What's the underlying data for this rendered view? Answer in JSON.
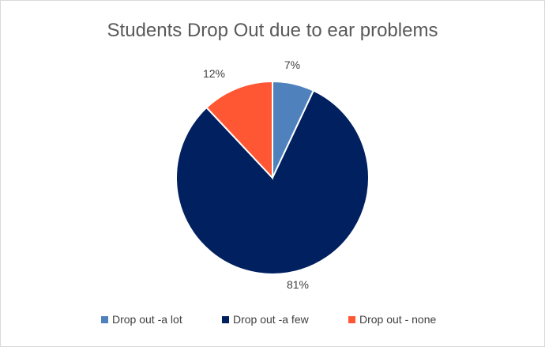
{
  "chart_data": {
    "type": "pie",
    "title": "Students Drop Out due to ear problems",
    "slices": [
      {
        "label": "Drop out -a lot",
        "value": 7,
        "value_label": "7%",
        "color": "#4f81bd"
      },
      {
        "label": "Drop out -a few",
        "value": 81,
        "value_label": "81%",
        "color": "#002060"
      },
      {
        "label": "Drop out - none",
        "value": 12,
        "value_label": "12%",
        "color": "#ff5733"
      }
    ],
    "legend_position": "bottom"
  }
}
